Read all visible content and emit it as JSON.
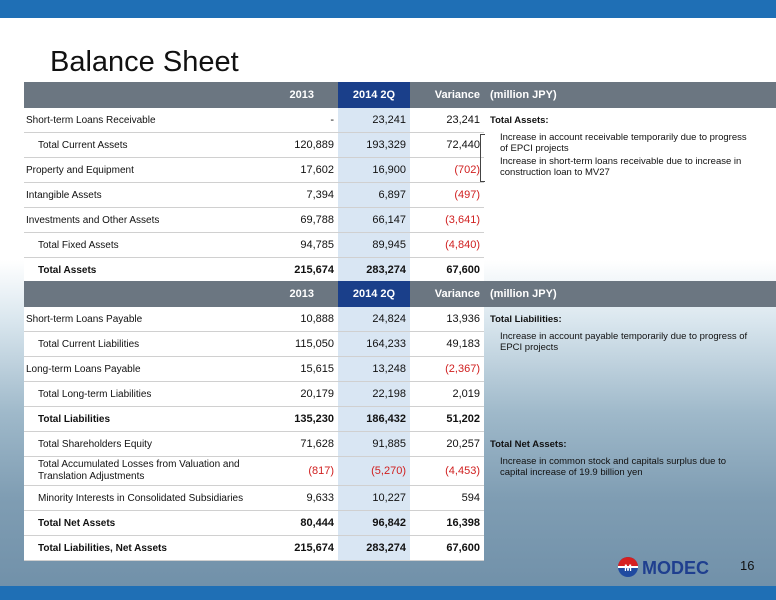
{
  "title": "Balance Sheet",
  "page_number": "16",
  "logo_text": "MODEC",
  "header": {
    "y2013": "2013",
    "y2014": "2014 2Q",
    "variance": "Variance",
    "unit": "(million JPY)"
  },
  "assets": [
    {
      "label": "Short-term Loans Receivable",
      "v2013": "-",
      "v2014": "23,241",
      "var": "23,241",
      "indent": false,
      "bold": false,
      "neg": [
        false,
        false,
        false
      ]
    },
    {
      "label": "Total Current Assets",
      "v2013": "120,889",
      "v2014": "193,329",
      "var": "72,440",
      "indent": true,
      "bold": false,
      "neg": [
        false,
        false,
        false
      ]
    },
    {
      "label": "Property and Equipment",
      "v2013": "17,602",
      "v2014": "16,900",
      "var": "(702)",
      "indent": false,
      "bold": false,
      "neg": [
        false,
        false,
        true
      ]
    },
    {
      "label": "Intangible Assets",
      "v2013": "7,394",
      "v2014": "6,897",
      "var": "(497)",
      "indent": false,
      "bold": false,
      "neg": [
        false,
        false,
        true
      ]
    },
    {
      "label": "Investments and Other Assets",
      "v2013": "69,788",
      "v2014": "66,147",
      "var": "(3,641)",
      "indent": false,
      "bold": false,
      "neg": [
        false,
        false,
        true
      ]
    },
    {
      "label": "Total Fixed Assets",
      "v2013": "94,785",
      "v2014": "89,945",
      "var": "(4,840)",
      "indent": true,
      "bold": false,
      "neg": [
        false,
        false,
        true
      ]
    },
    {
      "label": "Total Assets",
      "v2013": "215,674",
      "v2014": "283,274",
      "var": "67,600",
      "indent": true,
      "bold": true,
      "neg": [
        false,
        false,
        false
      ]
    }
  ],
  "assets_notes": {
    "title": "Total Assets:",
    "note1": "Increase in account receivable temporarily due to progress of EPCI projects",
    "note2": "Increase in short-term loans receivable due to increase in construction loan to MV27"
  },
  "liabilities": [
    {
      "label": "Short-term Loans Payable",
      "v2013": "10,888",
      "v2014": "24,824",
      "var": "13,936",
      "indent": false,
      "bold": false,
      "neg": [
        false,
        false,
        false
      ]
    },
    {
      "label": "Total Current Liabilities",
      "v2013": "115,050",
      "v2014": "164,233",
      "var": "49,183",
      "indent": true,
      "bold": false,
      "neg": [
        false,
        false,
        false
      ]
    },
    {
      "label": "Long-term Loans Payable",
      "v2013": "15,615",
      "v2014": "13,248",
      "var": "(2,367)",
      "indent": false,
      "bold": false,
      "neg": [
        false,
        false,
        true
      ]
    },
    {
      "label": "Total Long-term Liabilities",
      "v2013": "20,179",
      "v2014": "22,198",
      "var": "2,019",
      "indent": true,
      "bold": false,
      "neg": [
        false,
        false,
        false
      ]
    },
    {
      "label": "Total Liabilities",
      "v2013": "135,230",
      "v2014": "186,432",
      "var": "51,202",
      "indent": true,
      "bold": true,
      "neg": [
        false,
        false,
        false
      ]
    },
    {
      "label": "Total Shareholders Equity",
      "v2013": "71,628",
      "v2014": "91,885",
      "var": "20,257",
      "indent": true,
      "bold": false,
      "neg": [
        false,
        false,
        false
      ]
    },
    {
      "label": "Total Accumulated Losses from Valuation and Translation Adjustments",
      "v2013": "(817)",
      "v2014": "(5,270)",
      "var": "(4,453)",
      "indent": true,
      "bold": false,
      "neg": [
        true,
        true,
        true
      ]
    },
    {
      "label": "Minority Interests in Consolidated Subsidiaries",
      "v2013": "9,633",
      "v2014": "10,227",
      "var": "594",
      "indent": true,
      "bold": false,
      "neg": [
        false,
        false,
        false
      ]
    },
    {
      "label": "Total Net Assets",
      "v2013": "80,444",
      "v2014": "96,842",
      "var": "16,398",
      "indent": true,
      "bold": true,
      "neg": [
        false,
        false,
        false
      ]
    },
    {
      "label": "Total Liabilities, Net Assets",
      "v2013": "215,674",
      "v2014": "283,274",
      "var": "67,600",
      "indent": true,
      "bold": true,
      "neg": [
        false,
        false,
        false
      ]
    }
  ],
  "liab_notes": {
    "title": "Total Liabilities:",
    "note1": "Increase in account payable temporarily due to progress of EPCI projects"
  },
  "netassets_notes": {
    "title": "Total Net Assets:",
    "note1": "Increase in common stock and capitals surplus due to capital increase of 19.9 billion yen"
  }
}
